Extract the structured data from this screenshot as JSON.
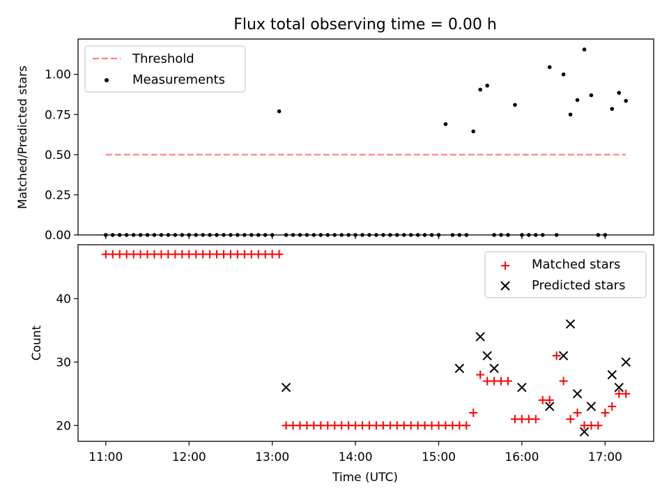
{
  "title": "Flux total observing time = 0.00 h",
  "colors": {
    "threshold": "#ff7f7f",
    "measurement": "#000000",
    "matched": "#ff0000",
    "predicted": "#000000"
  },
  "chart_data": [
    {
      "type": "scatter",
      "ylabel": "Matched/Predicted stars",
      "ylim": [
        0,
        1.22
      ],
      "yticks": [
        "0.00",
        "0.25",
        "0.50",
        "0.75",
        "1.00"
      ],
      "ytick_values": [
        0,
        0.25,
        0.5,
        0.75,
        1.0
      ],
      "xlim": [
        "10:40",
        "17:35"
      ],
      "legend": {
        "placement": "upper left",
        "entries": [
          "Threshold",
          "Measurements"
        ]
      },
      "threshold": {
        "name": "Threshold",
        "y": 0.5,
        "x_start": "11:00",
        "x_end": "17:15",
        "style": "dashed"
      },
      "measurements": {
        "name": "Measurements",
        "x": [
          "11:00",
          "11:05",
          "11:10",
          "11:15",
          "11:20",
          "11:25",
          "11:30",
          "11:35",
          "11:40",
          "11:45",
          "11:50",
          "11:55",
          "12:00",
          "12:05",
          "12:10",
          "12:15",
          "12:20",
          "12:25",
          "12:30",
          "12:35",
          "12:40",
          "12:45",
          "12:50",
          "12:55",
          "13:00",
          "13:05",
          "13:10",
          "13:15",
          "13:20",
          "13:25",
          "13:30",
          "13:35",
          "13:40",
          "13:45",
          "13:50",
          "13:55",
          "14:00",
          "14:05",
          "14:10",
          "14:15",
          "14:20",
          "14:25",
          "14:30",
          "14:35",
          "14:40",
          "14:45",
          "14:50",
          "14:55",
          "15:00",
          "15:05",
          "15:10",
          "15:15",
          "15:20",
          "15:25",
          "15:30",
          "15:35",
          "15:40",
          "15:45",
          "15:50",
          "15:55",
          "16:00",
          "16:05",
          "16:10",
          "16:15",
          "16:20",
          "16:25",
          "16:30",
          "16:35",
          "16:40",
          "16:45",
          "16:50",
          "16:55",
          "17:00",
          "17:05",
          "17:10",
          "17:15"
        ],
        "y": [
          0,
          0,
          0,
          0,
          0,
          0,
          0,
          0,
          0,
          0,
          0,
          0,
          0,
          0,
          0,
          0,
          0,
          0,
          0,
          0,
          0,
          0,
          0,
          0,
          0,
          0.77,
          0,
          0,
          0,
          0,
          0,
          0,
          0,
          0,
          0,
          0,
          0,
          0,
          0,
          0,
          0,
          0,
          0,
          0,
          0,
          0,
          0,
          0,
          0,
          0.69,
          0,
          0,
          0,
          0.645,
          0.905,
          0.93,
          0,
          0,
          0,
          0.81,
          0,
          0,
          0,
          0,
          1.045,
          0,
          1.0,
          0.75,
          0.84,
          1.155,
          0.87,
          0,
          0,
          0.785,
          0.885,
          0.835
        ]
      }
    },
    {
      "type": "scatter",
      "xlabel": "Time (UTC)",
      "ylabel": "Count",
      "ylim": [
        17.5,
        48.5
      ],
      "yticks": [
        "20",
        "30",
        "40"
      ],
      "ytick_values": [
        20,
        30,
        40
      ],
      "xlim": [
        "10:40",
        "17:35"
      ],
      "xticks": [
        "11:00",
        "12:00",
        "13:00",
        "14:00",
        "15:00",
        "16:00",
        "17:00"
      ],
      "legend": {
        "placement": "upper right",
        "entries": [
          "Matched stars",
          "Predicted stars"
        ]
      },
      "matched": {
        "name": "Matched stars",
        "x": [
          "11:00",
          "11:05",
          "11:10",
          "11:15",
          "11:20",
          "11:25",
          "11:30",
          "11:35",
          "11:40",
          "11:45",
          "11:50",
          "11:55",
          "12:00",
          "12:05",
          "12:10",
          "12:15",
          "12:20",
          "12:25",
          "12:30",
          "12:35",
          "12:40",
          "12:45",
          "12:50",
          "12:55",
          "13:00",
          "13:05",
          "13:10",
          "13:15",
          "13:20",
          "13:25",
          "13:30",
          "13:35",
          "13:40",
          "13:45",
          "13:50",
          "13:55",
          "14:00",
          "14:05",
          "14:10",
          "14:15",
          "14:20",
          "14:25",
          "14:30",
          "14:35",
          "14:40",
          "14:45",
          "14:50",
          "14:55",
          "15:00",
          "15:05",
          "15:10",
          "15:15",
          "15:20",
          "15:25",
          "15:30",
          "15:35",
          "15:40",
          "15:45",
          "15:50",
          "15:55",
          "16:00",
          "16:05",
          "16:10",
          "16:15",
          "16:20",
          "16:25",
          "16:30",
          "16:35",
          "16:40",
          "16:45",
          "16:50",
          "16:55",
          "17:00",
          "17:05",
          "17:10",
          "17:15"
        ],
        "y": [
          47,
          47,
          47,
          47,
          47,
          47,
          47,
          47,
          47,
          47,
          47,
          47,
          47,
          47,
          47,
          47,
          47,
          47,
          47,
          47,
          47,
          47,
          47,
          47,
          47,
          47,
          20,
          20,
          20,
          20,
          20,
          20,
          20,
          20,
          20,
          20,
          20,
          20,
          20,
          20,
          20,
          20,
          20,
          20,
          20,
          20,
          20,
          20,
          20,
          20,
          20,
          20,
          20,
          22,
          28,
          27,
          27,
          27,
          27,
          21,
          21,
          21,
          21,
          24,
          24,
          31,
          27,
          21,
          22,
          20,
          20,
          20,
          22,
          23,
          25,
          25
        ]
      },
      "predicted": {
        "name": "Predicted stars",
        "x": [
          "13:10",
          "15:15",
          "15:30",
          "15:35",
          "15:40",
          "16:00",
          "16:20",
          "16:30",
          "16:35",
          "16:40",
          "16:45",
          "16:50",
          "17:05",
          "17:10",
          "17:15"
        ],
        "y": [
          26,
          29,
          34,
          31,
          29,
          26,
          23,
          31,
          36,
          25,
          19,
          23,
          28,
          26,
          30
        ]
      }
    }
  ]
}
